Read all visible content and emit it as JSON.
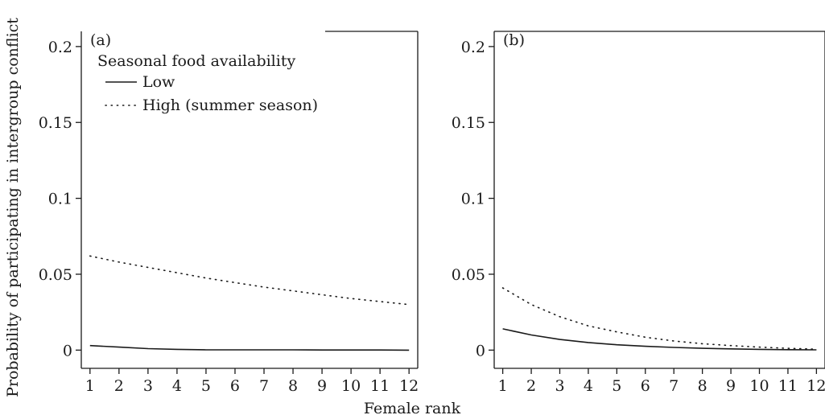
{
  "chart_data": {
    "type": "line",
    "xlabel": "Female rank",
    "ylabel": "Probability of participating in intergroup conflict",
    "legend": {
      "title": "Seasonal food availability",
      "placement": "top-left of panel (a)",
      "entries": [
        {
          "name": "Low",
          "style": "solid"
        },
        {
          "name": "High (summer season)",
          "style": "dotted"
        }
      ]
    },
    "xlim": [
      0.7,
      12.3
    ],
    "ylim": [
      -0.012,
      0.21
    ],
    "xticks": [
      "1",
      "2",
      "3",
      "4",
      "5",
      "6",
      "7",
      "8",
      "9",
      "10",
      "11",
      "12"
    ],
    "yticks": [
      "0",
      "0.05",
      "0.1",
      "0.15",
      "0.2"
    ],
    "grid": false,
    "panels": [
      {
        "label": "(a)",
        "x": [
          1,
          2,
          3,
          4,
          5,
          6,
          7,
          8,
          9,
          10,
          11,
          12
        ],
        "series": [
          {
            "name": "Low",
            "values": [
              0.003,
              0.002,
              0.001,
              0.0005,
              0.0002,
              0.0002,
              0.0002,
              0.0002,
              0.0001,
              0.0001,
              0.0001,
              0.0
            ]
          },
          {
            "name": "High (summer season)",
            "values": [
              0.062,
              0.058,
              0.0545,
              0.051,
              0.0475,
              0.0445,
              0.0415,
              0.039,
              0.0365,
              0.034,
              0.032,
              0.03
            ]
          }
        ]
      },
      {
        "label": "(b)",
        "x": [
          1,
          2,
          3,
          4,
          5,
          6,
          7,
          8,
          9,
          10,
          11,
          12
        ],
        "series": [
          {
            "name": "Low",
            "values": [
              0.014,
              0.01,
              0.007,
              0.005,
              0.0035,
              0.0025,
              0.0018,
              0.0012,
              0.0008,
              0.0005,
              0.0003,
              0.0002
            ]
          },
          {
            "name": "High (summer season)",
            "values": [
              0.041,
              0.03,
              0.022,
              0.016,
              0.012,
              0.0085,
              0.006,
              0.0042,
              0.003,
              0.002,
              0.0012,
              0.0006
            ]
          }
        ]
      }
    ]
  }
}
